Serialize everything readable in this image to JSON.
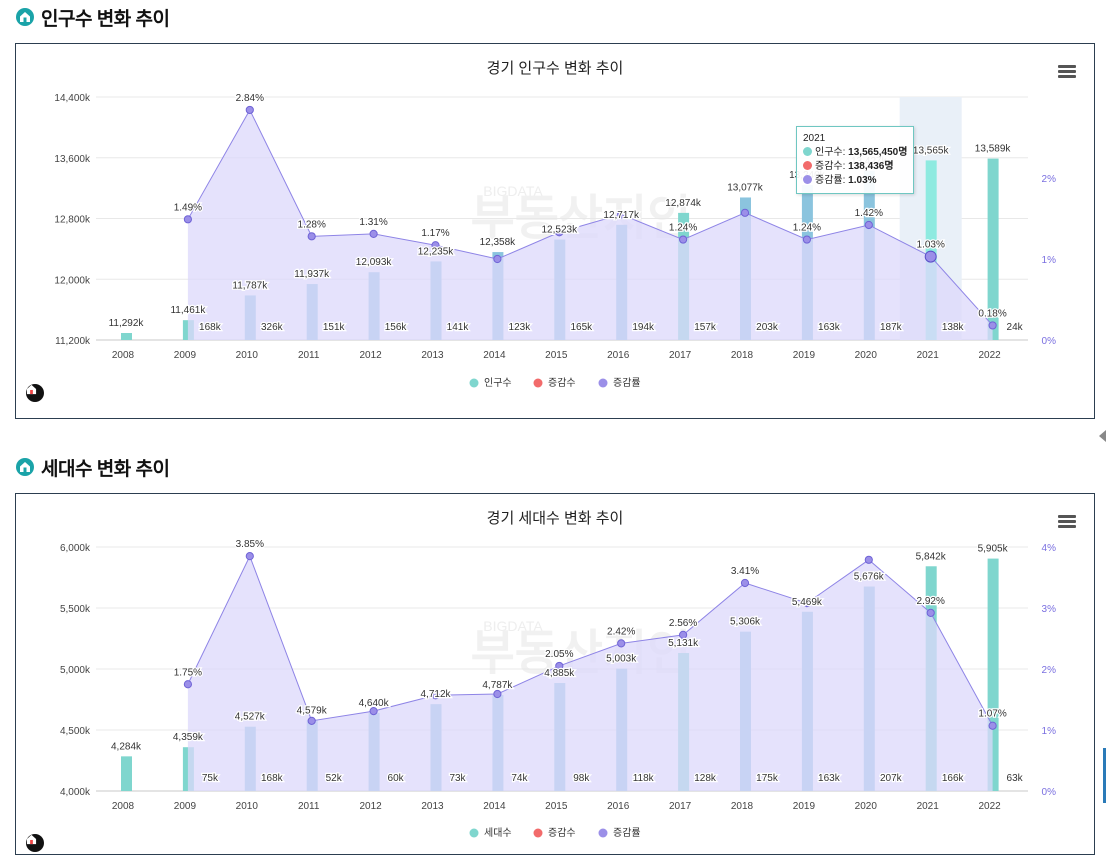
{
  "sections": [
    {
      "title": "인구수 변화 추이"
    },
    {
      "title": "세대수 변화 추이"
    }
  ],
  "icons": {
    "section": "home-icon",
    "menu": "hamburger-menu-icon",
    "brand": "brand-logo-icon",
    "side": "collapse-arrow-icon"
  },
  "colors": {
    "bar": "#7fd6ce",
    "barBlue": "#8bc4de",
    "change": "#f26b6b",
    "rate": "#9b8fe8",
    "area": "#dcd8fb",
    "accent": "#1aa3a8"
  },
  "watermark": {
    "top": "BIGDATA",
    "main": "부동산지인"
  },
  "chart_data": [
    {
      "type": "bar",
      "title": "경기 인구수 변화 추이",
      "categories": [
        "2008",
        "2009",
        "2010",
        "2011",
        "2012",
        "2013",
        "2014",
        "2015",
        "2016",
        "2017",
        "2018",
        "2019",
        "2020",
        "2021",
        "2022"
      ],
      "series": [
        {
          "name": "인구수",
          "values": [
            11292,
            11461,
            11787,
            11937,
            12093,
            12235,
            12358,
            12523,
            12717,
            12874,
            13077,
            13240,
            13427,
            13565,
            13589
          ],
          "labels": [
            "11,292k",
            "11,461k",
            "11,787k",
            "11,937k",
            "12,093k",
            "12,235k",
            "12,358k",
            "12,523k",
            "12,717k",
            "12,874k",
            "13,077k",
            "13,240k",
            "13,427k",
            "13,565k",
            "13,589k"
          ]
        },
        {
          "name": "증감수",
          "values": [
            null,
            168,
            326,
            151,
            156,
            141,
            123,
            165,
            194,
            157,
            203,
            163,
            187,
            138,
            24
          ],
          "labels": [
            "",
            "168k",
            "326k",
            "151k",
            "156k",
            "141k",
            "123k",
            "165k",
            "194k",
            "157k",
            "203k",
            "163k",
            "187k",
            "138k",
            "24k"
          ]
        },
        {
          "name": "증감률",
          "values": [
            null,
            1.49,
            2.84,
            1.28,
            1.31,
            1.17,
            1.0,
            1.33,
            1.55,
            1.24,
            1.57,
            1.24,
            1.42,
            1.03,
            0.18
          ],
          "labels": [
            "",
            "1.49%",
            "2.84%",
            "1.28%",
            "1.31%",
            "1.17%",
            "",
            "",
            "",
            "1.24%",
            "",
            "1.24%",
            "1.42%",
            "1.03%",
            "0.18%"
          ]
        }
      ],
      "yTicks": [
        "14,400k",
        "13,600k",
        "12,800k",
        "12,000k",
        "11,200k"
      ],
      "ylim": [
        11200,
        14400
      ],
      "y2Ticks": [
        "2%",
        "1%",
        "0%"
      ],
      "y2lim": [
        0,
        3.0
      ],
      "legend": "bottom-center",
      "tooltip": {
        "year": "2021",
        "pop_label": "인구수:",
        "pop_value": "13,565,450명",
        "chg_label": "증감수:",
        "chg_value": "138,436명",
        "rate_label": "증감률:",
        "rate_value": "1.03%"
      }
    },
    {
      "type": "bar",
      "title": "경기 세대수 변화 추이",
      "categories": [
        "2008",
        "2009",
        "2010",
        "2011",
        "2012",
        "2013",
        "2014",
        "2015",
        "2016",
        "2017",
        "2018",
        "2019",
        "2020",
        "2021",
        "2022"
      ],
      "series": [
        {
          "name": "세대수",
          "values": [
            4284,
            4359,
            4527,
            4579,
            4640,
            4712,
            4787,
            4885,
            5003,
            5131,
            5306,
            5469,
            5676,
            5842,
            5905
          ],
          "labels": [
            "4,284k",
            "4,359k",
            "4,527k",
            "4,579k",
            "4,640k",
            "4,712k",
            "4,787k",
            "4,885k",
            "5,003k",
            "5,131k",
            "5,306k",
            "5,469k",
            "5,676k",
            "5,842k",
            "5,905k"
          ]
        },
        {
          "name": "증감수",
          "values": [
            null,
            75,
            168,
            52,
            60,
            73,
            74,
            98,
            118,
            128,
            175,
            163,
            207,
            166,
            63
          ],
          "labels": [
            "",
            "75k",
            "168k",
            "52k",
            "60k",
            "73k",
            "74k",
            "98k",
            "118k",
            "128k",
            "175k",
            "163k",
            "207k",
            "166k",
            "63k"
          ]
        },
        {
          "name": "증감률",
          "values": [
            null,
            1.75,
            3.85,
            1.15,
            1.31,
            1.57,
            1.59,
            2.05,
            2.42,
            2.56,
            3.41,
            3.08,
            3.79,
            2.92,
            1.07
          ],
          "labels": [
            "",
            "1.75%",
            "3.85%",
            "",
            "",
            "",
            "",
            "2.05%",
            "2.42%",
            "2.56%",
            "3.41%",
            "",
            "",
            "2.92%",
            "1.07%"
          ]
        }
      ],
      "yTicks": [
        "6,000k",
        "5,500k",
        "5,000k",
        "4,500k",
        "4,000k"
      ],
      "ylim": [
        4000,
        6000
      ],
      "y2Ticks": [
        "4%",
        "3%",
        "2%",
        "1%",
        "0%"
      ],
      "y2lim": [
        0,
        4.0
      ],
      "legend": "bottom-center"
    }
  ]
}
